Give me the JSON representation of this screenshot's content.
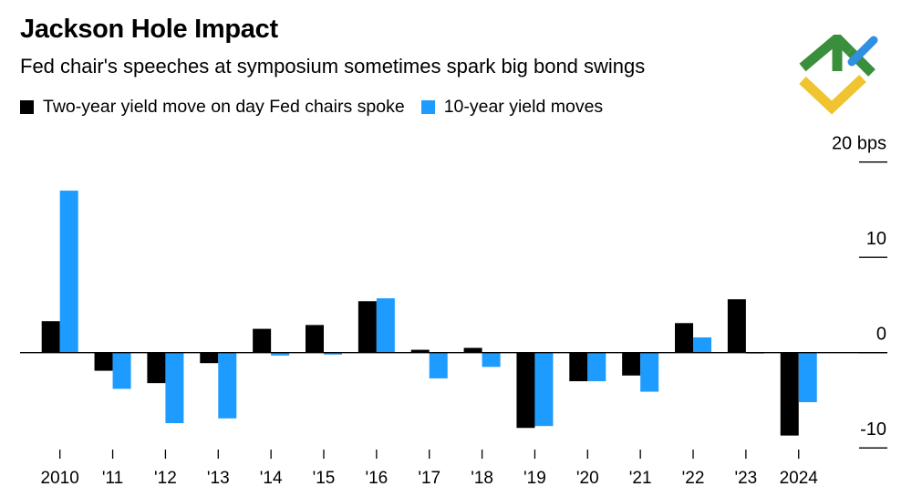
{
  "header": {
    "title": "Jackson Hole Impact",
    "subtitle": "Fed chair's speeches at symposium sometimes spark big bond swings"
  },
  "logo": {
    "icon": "brand-logo-icon",
    "colors": [
      "#3a8f3c",
      "#2f8fe0",
      "#f0c330"
    ]
  },
  "chart_data": {
    "type": "bar",
    "title": "Jackson Hole Impact",
    "subtitle": "Fed chair's speeches at symposium sometimes spark big bond swings",
    "xlabel": "",
    "ylabel": "bps",
    "categories": [
      "2010",
      "'11",
      "'12",
      "'13",
      "'14",
      "'15",
      "'16",
      "'17",
      "'18",
      "'19",
      "'20",
      "'21",
      "'22",
      "'23",
      "2024"
    ],
    "series": [
      {
        "name": "Two-year yield move on day Fed chairs spoke",
        "color": "#000000",
        "values": [
          3.3,
          -1.9,
          -3.2,
          -1.1,
          2.5,
          2.9,
          5.4,
          0.3,
          0.5,
          -7.9,
          -3.0,
          -2.4,
          3.1,
          5.6,
          -8.7
        ]
      },
      {
        "name": "10-year yield moves",
        "color": "#1e9bff",
        "values": [
          17.0,
          -3.8,
          -7.4,
          -6.9,
          -0.3,
          -0.2,
          5.7,
          -2.7,
          -1.5,
          -7.7,
          -3.0,
          -4.1,
          1.6,
          -0.1,
          -5.2
        ]
      }
    ],
    "yticks": [
      {
        "value": 20,
        "label": "20 bps"
      },
      {
        "value": 10,
        "label": "10"
      },
      {
        "value": 0,
        "label": "0"
      },
      {
        "value": -10,
        "label": "-10"
      }
    ],
    "ylim": [
      -10,
      20
    ],
    "grid": false,
    "legend_position": "top-left"
  }
}
